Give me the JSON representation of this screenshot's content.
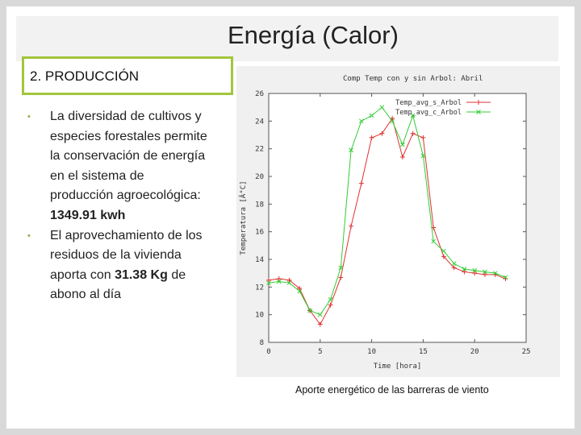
{
  "slide": {
    "title": "Energía (Calor)",
    "subtitle": "2. PRODUCCIÓN",
    "bullets": [
      {
        "text_before": "La diversidad de cultivos y especies forestales permite la conservación de energía en el sistema de producción agroecológica: ",
        "bold": "1349.91 kwh",
        "text_after": ""
      },
      {
        "text_before": "El aprovechamiento de los residuos de la vivienda aporta con ",
        "bold": "31.38 Kg",
        "text_after": " de abono al día"
      }
    ],
    "bullet_glyph": "•",
    "caption": "Aporte energético de las barreras de viento"
  },
  "colors": {
    "accent_green": "#a3c53b",
    "series_red": "#e03030",
    "series_green": "#33cc33"
  },
  "chart_data": {
    "type": "line",
    "title": "Comp Temp con y sin Arbol: Abril",
    "xlabel": "Time [hora]",
    "ylabel": "Temperatura [Â°C]",
    "xlim": [
      0,
      25
    ],
    "ylim": [
      8,
      26
    ],
    "xticks": [
      0,
      5,
      10,
      15,
      20,
      25
    ],
    "yticks": [
      8,
      10,
      12,
      14,
      16,
      18,
      20,
      22,
      24,
      26
    ],
    "legend_position": "top-right",
    "grid": false,
    "x": [
      0,
      1,
      2,
      3,
      4,
      5,
      6,
      7,
      8,
      9,
      10,
      11,
      12,
      13,
      14,
      15,
      16,
      17,
      18,
      19,
      20,
      21,
      22,
      23
    ],
    "series": [
      {
        "name": "Temp_avg_s_Arbol",
        "marker": "+",
        "color": "#e03030",
        "values": [
          12.5,
          12.6,
          12.5,
          11.9,
          10.3,
          9.3,
          10.7,
          12.7,
          16.4,
          19.5,
          22.8,
          23.1,
          24.2,
          21.4,
          23.1,
          22.8,
          16.3,
          14.2,
          13.4,
          13.1,
          13.0,
          12.9,
          12.9,
          12.6
        ]
      },
      {
        "name": "Temp_avg_c_Arbol",
        "marker": "x",
        "color": "#33cc33",
        "values": [
          12.3,
          12.4,
          12.3,
          11.7,
          10.3,
          10.0,
          11.1,
          13.4,
          21.9,
          24.0,
          24.4,
          25.0,
          24.0,
          22.3,
          24.4,
          21.5,
          15.3,
          14.6,
          13.7,
          13.3,
          13.2,
          13.1,
          13.0,
          12.7
        ]
      }
    ]
  }
}
